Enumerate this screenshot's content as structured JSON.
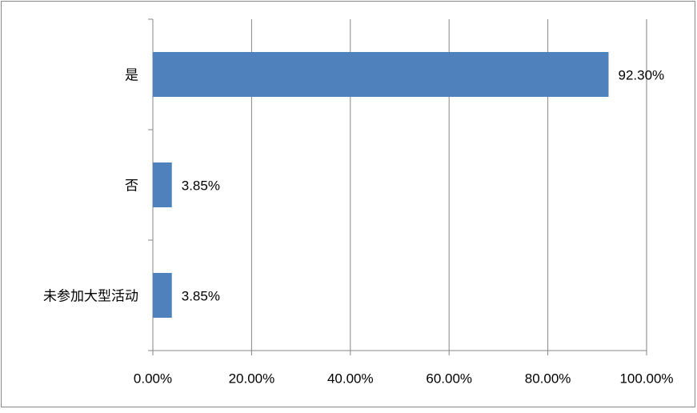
{
  "chart_data": {
    "type": "bar",
    "orientation": "horizontal",
    "categories": [
      "是",
      "否",
      "未参加大型活动"
    ],
    "values": [
      92.3,
      3.85,
      3.85
    ],
    "value_labels": [
      "92.30%",
      "3.85%",
      "3.85%"
    ],
    "color": "#4f81bd",
    "xlim": [
      0,
      100
    ],
    "xticks": [
      {
        "value": 0,
        "label": "0.00%"
      },
      {
        "value": 20,
        "label": "20.00%"
      },
      {
        "value": 40,
        "label": "40.00%"
      },
      {
        "value": 60,
        "label": "60.00%"
      },
      {
        "value": 80,
        "label": "80.00%"
      },
      {
        "value": 100,
        "label": "100.00%"
      }
    ],
    "grid": true
  }
}
